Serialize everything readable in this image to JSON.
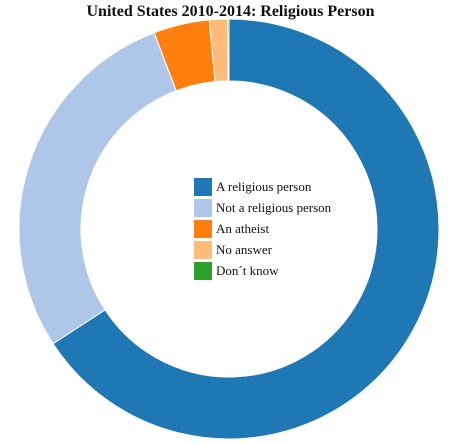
{
  "chart_data": {
    "type": "pie",
    "title": "United States 2010-2014: Religious Person",
    "categories": [
      "A religious person",
      "Not a religious person",
      "An atheist",
      "No answer",
      "Don´t know"
    ],
    "values": [
      65.8,
      28.4,
      4.3,
      1.4,
      0.1
    ],
    "colors": [
      "#1f77b4",
      "#aec7e8",
      "#ff7f0e",
      "#ffbb78",
      "#2ca02c"
    ],
    "legend_placement": "center"
  }
}
